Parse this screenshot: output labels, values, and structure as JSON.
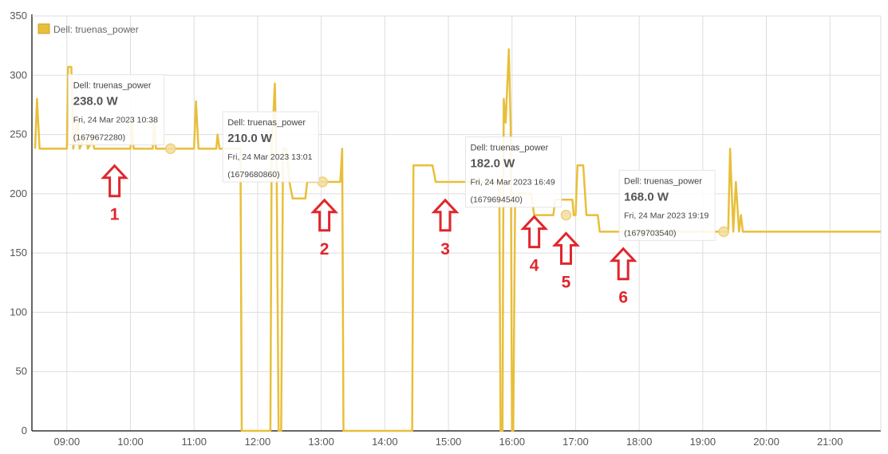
{
  "chart_data": {
    "type": "line",
    "legend": {
      "label": "Dell: truenas_power",
      "position": "top-left"
    },
    "colors": {
      "series": "#e8bf3a",
      "grid": "#dddddd",
      "axis": "#333333",
      "annotation": "#e0262c"
    },
    "xlim": [
      8.45,
      21.8
    ],
    "ylim": [
      0,
      350
    ],
    "y_ticks": [
      0,
      50,
      100,
      150,
      200,
      250,
      300,
      350
    ],
    "x_ticks": [
      {
        "value": 9,
        "label": "09:00"
      },
      {
        "value": 10,
        "label": "10:00"
      },
      {
        "value": 11,
        "label": "11:00"
      },
      {
        "value": 12,
        "label": "12:00"
      },
      {
        "value": 13,
        "label": "13:00"
      },
      {
        "value": 14,
        "label": "14:00"
      },
      {
        "value": 15,
        "label": "15:00"
      },
      {
        "value": 16,
        "label": "16:00"
      },
      {
        "value": 17,
        "label": "17:00"
      },
      {
        "value": 18,
        "label": "18:00"
      },
      {
        "value": 19,
        "label": "19:00"
      },
      {
        "value": 20,
        "label": "20:00"
      },
      {
        "value": 21,
        "label": "21:00"
      }
    ],
    "grid": true,
    "series": [
      {
        "name": "Dell: truenas_power",
        "points": [
          [
            8.5,
            238
          ],
          [
            8.53,
            280
          ],
          [
            8.57,
            238
          ],
          [
            9.0,
            238
          ],
          [
            9.02,
            307
          ],
          [
            9.07,
            307
          ],
          [
            9.1,
            238
          ],
          [
            9.17,
            262
          ],
          [
            9.2,
            238
          ],
          [
            9.3,
            250
          ],
          [
            9.33,
            238
          ],
          [
            9.4,
            245
          ],
          [
            9.43,
            238
          ],
          [
            10.0,
            238
          ],
          [
            10.02,
            262
          ],
          [
            10.05,
            238
          ],
          [
            10.35,
            238
          ],
          [
            10.37,
            262
          ],
          [
            10.4,
            238
          ],
          [
            11.0,
            238
          ],
          [
            11.03,
            278
          ],
          [
            11.07,
            238
          ],
          [
            11.35,
            238
          ],
          [
            11.37,
            250
          ],
          [
            11.4,
            238
          ],
          [
            11.73,
            238
          ],
          [
            11.75,
            0
          ],
          [
            12.2,
            0
          ],
          [
            12.22,
            238
          ],
          [
            12.27,
            293
          ],
          [
            12.3,
            215
          ],
          [
            12.33,
            0
          ],
          [
            12.37,
            0
          ],
          [
            12.4,
            238
          ],
          [
            12.45,
            238
          ],
          [
            12.5,
            210
          ],
          [
            12.55,
            196
          ],
          [
            12.75,
            196
          ],
          [
            12.78,
            210
          ],
          [
            13.3,
            210
          ],
          [
            13.33,
            238
          ],
          [
            13.35,
            0
          ],
          [
            14.43,
            0
          ],
          [
            14.45,
            224
          ],
          [
            14.75,
            224
          ],
          [
            14.8,
            210
          ],
          [
            15.8,
            210
          ],
          [
            15.82,
            0
          ],
          [
            15.85,
            0
          ],
          [
            15.87,
            280
          ],
          [
            15.9,
            260
          ],
          [
            15.95,
            322
          ],
          [
            15.98,
            255
          ],
          [
            16.0,
            0
          ],
          [
            16.02,
            0
          ],
          [
            16.05,
            200
          ],
          [
            16.3,
            200
          ],
          [
            16.35,
            182
          ],
          [
            16.65,
            182
          ],
          [
            16.68,
            195
          ],
          [
            16.95,
            195
          ],
          [
            16.97,
            182
          ],
          [
            17.0,
            182
          ],
          [
            17.03,
            224
          ],
          [
            17.12,
            224
          ],
          [
            17.17,
            182
          ],
          [
            17.35,
            182
          ],
          [
            17.38,
            168
          ],
          [
            19.35,
            168
          ],
          [
            19.4,
            168
          ],
          [
            19.43,
            238
          ],
          [
            19.48,
            168
          ],
          [
            19.52,
            210
          ],
          [
            19.57,
            168
          ],
          [
            19.6,
            182
          ],
          [
            19.63,
            168
          ],
          [
            21.8,
            168
          ]
        ]
      }
    ],
    "markers": [
      {
        "x": 10.63,
        "y": 238
      },
      {
        "x": 13.02,
        "y": 210
      },
      {
        "x": 16.85,
        "y": 182
      },
      {
        "x": 19.33,
        "y": 168
      }
    ],
    "tooltips": [
      {
        "series": "Dell: truenas_power",
        "value": "238.0 W",
        "time": "Fri, 24 Mar 2023 10:38",
        "timestamp": "(1679672280)"
      },
      {
        "series": "Dell: truenas_power",
        "value": "210.0 W",
        "time": "Fri, 24 Mar 2023 13:01",
        "timestamp": "(1679680860)"
      },
      {
        "series": "Dell: truenas_power",
        "value": "182.0 W",
        "time": "Fri, 24 Mar 2023 16:49",
        "timestamp": "(1679694540)"
      },
      {
        "series": "Dell: truenas_power",
        "value": "168.0 W",
        "time": "Fri, 24 Mar 2023 19:19",
        "timestamp": "(1679703540)"
      }
    ],
    "annotations": [
      {
        "label": "1",
        "x": 9.75,
        "y": 225
      },
      {
        "label": "2",
        "x": 13.05,
        "y": 196
      },
      {
        "label": "3",
        "x": 14.95,
        "y": 196
      },
      {
        "label": "4",
        "x": 16.35,
        "y": 182
      },
      {
        "label": "5",
        "x": 16.85,
        "y": 168
      },
      {
        "label": "6",
        "x": 17.75,
        "y": 155
      }
    ]
  }
}
